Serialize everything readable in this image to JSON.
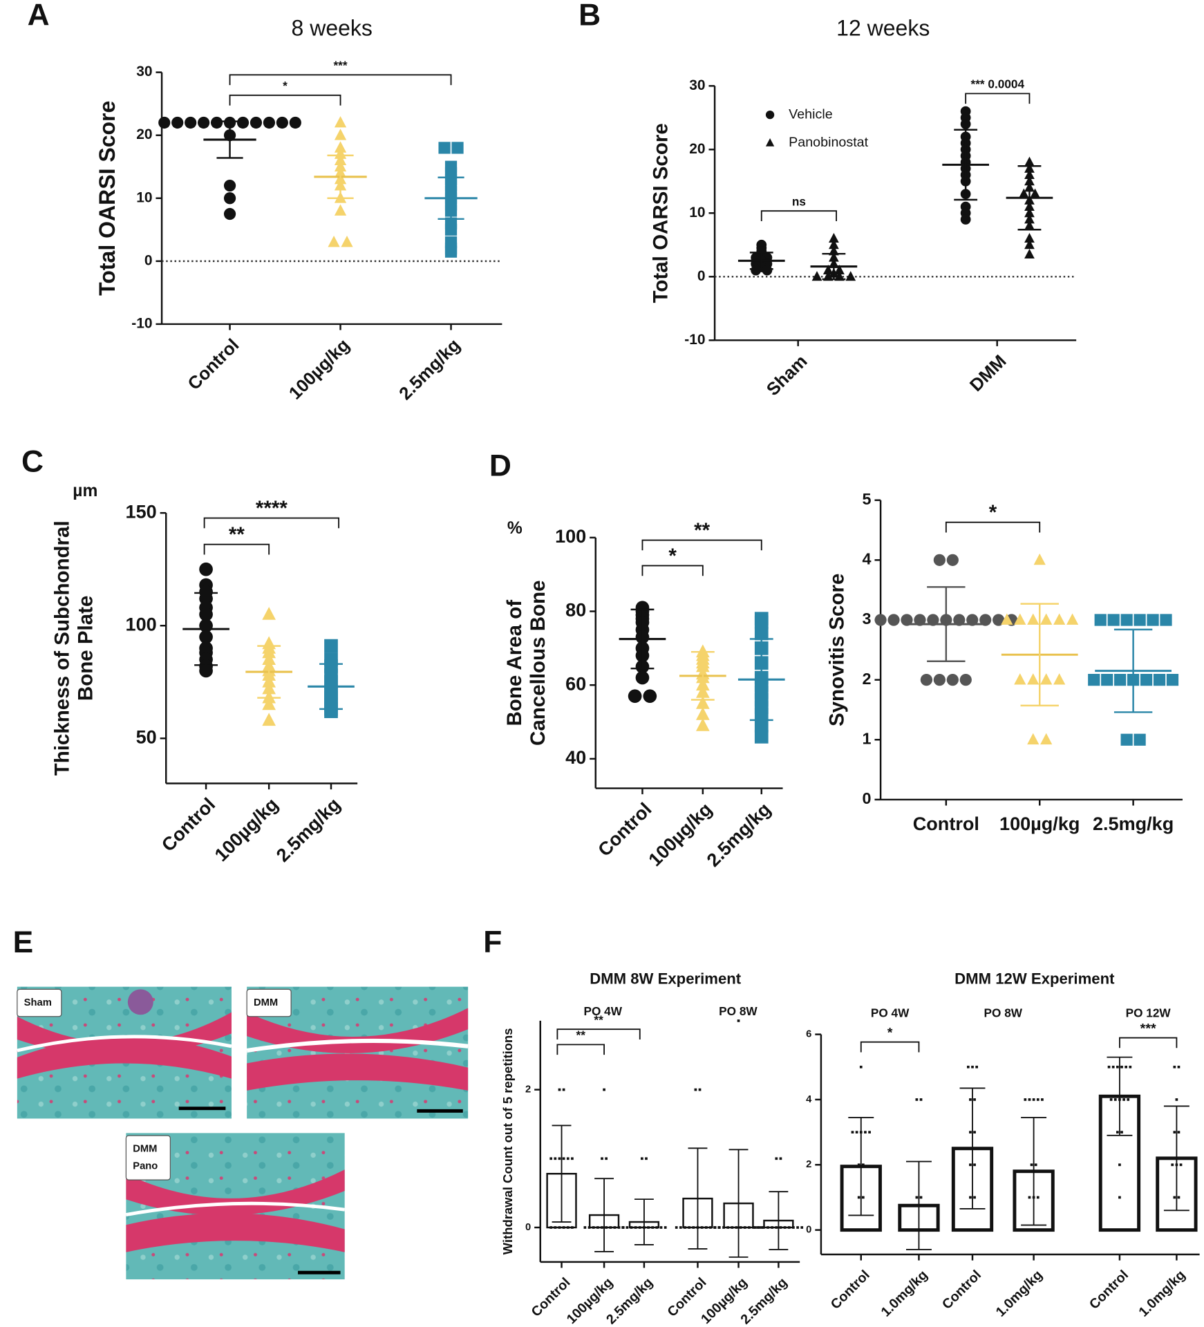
{
  "figure": {
    "panels": [
      "A",
      "B",
      "C",
      "D",
      "E",
      "F"
    ],
    "histology": [
      [
        "Sham"
      ],
      [
        "DMM"
      ],
      [
        "DMM",
        "Pano"
      ]
    ]
  },
  "chart_data": [
    {
      "type": "dotplot",
      "title": "8 weeks",
      "ylabel": [
        "Total OARSI Score"
      ],
      "ylim": [
        -10,
        30
      ],
      "yticks": [
        -10,
        0,
        10,
        20,
        30
      ],
      "zero_line": true,
      "categories": [
        "Control",
        "100µg/kg",
        "2.5mg/kg"
      ],
      "series": [
        {
          "colors": [
            "#111111",
            "#f5d36b",
            "#2a86a8"
          ],
          "marker": [
            "circle",
            "triangle",
            "square"
          ],
          "values": [
            19.3,
            13.4,
            10
          ],
          "errors": [
            2.9,
            3.4,
            3.3
          ],
          "points": [
            [
              22,
              22,
              22,
              22,
              22,
              22,
              22,
              22,
              22,
              22,
              22,
              20,
              12,
              10,
              7.5
            ],
            [
              22,
              20,
              18,
              17,
              16,
              15,
              14,
              13,
              12,
              10,
              8,
              3,
              3
            ],
            [
              18,
              18,
              15,
              14,
              13,
              12,
              11,
              10,
              9,
              8,
              6,
              5,
              3,
              2,
              1.5
            ]
          ]
        }
      ],
      "annotations": [
        "*",
        "***"
      ]
    },
    {
      "type": "dotplot",
      "title": "12 weeks",
      "ylabel": [
        "Total OARSI Score"
      ],
      "ylim": [
        -10,
        30
      ],
      "yticks": [
        -10,
        0,
        10,
        20,
        30
      ],
      "zero_line": true,
      "categories": [
        "Sham",
        "DMM"
      ],
      "series": [
        {
          "name": "Vehicle",
          "color": "#111111",
          "marker": "circle",
          "values": [
            2.5,
            17.6
          ],
          "errors": [
            1.3,
            5.5
          ],
          "points": [
            [
              5,
              4.5,
              4,
              3,
              3,
              2.5,
              2,
              2,
              1.5,
              1,
              1
            ],
            [
              26,
              25,
              24,
              22,
              21,
              20,
              19,
              18,
              17,
              16,
              15,
              13,
              11,
              10,
              9
            ]
          ]
        },
        {
          "name": "Panobinostat",
          "color": "#111111",
          "marker": "triangle",
          "values": [
            1.6,
            12.4
          ],
          "errors": [
            2,
            5
          ],
          "points": [
            [
              6,
              5,
              4,
              3,
              2,
              1,
              1,
              0.5,
              0,
              0,
              0,
              0
            ],
            [
              18,
              17,
              16,
              15,
              14,
              13,
              13,
              12,
              11,
              10,
              9,
              8,
              6,
              5,
              3.5
            ]
          ]
        }
      ],
      "annotations": [
        "ns",
        "*** 0.0004"
      ]
    },
    {
      "type": "dotplot",
      "unit": "µm",
      "ylabel": [
        "Thickness of Subchondral",
        "Bone Plate"
      ],
      "ylim": [
        30,
        150
      ],
      "yticks": [
        50,
        100,
        150
      ],
      "categories": [
        "Control",
        "100µg/kg",
        "2.5mg/kg"
      ],
      "series": [
        {
          "colors": [
            "#111111",
            "#f5d36b",
            "#2a86a8"
          ],
          "marker": [
            "circle",
            "triangle",
            "square"
          ],
          "values": [
            98.5,
            79.5,
            73
          ],
          "errors": [
            16,
            11.5,
            10
          ],
          "points": [
            [
              125,
              118,
              115,
              112,
              108,
              105,
              100,
              95,
              90,
              88,
              85,
              82,
              80
            ],
            [
              105,
              92,
              90,
              88,
              85,
              82,
              80,
              78,
              75,
              72,
              68,
              65,
              58
            ],
            [
              91,
              85,
              82,
              78,
              75,
              72,
              70,
              68,
              66,
              65,
              63,
              62
            ]
          ]
        }
      ],
      "annotations": [
        "**",
        "****"
      ]
    },
    {
      "type": "dotplot",
      "unit": "%",
      "ylabel": [
        "Bone Area of",
        "Cancellous Bone"
      ],
      "ylim": [
        32,
        100
      ],
      "yticks": [
        40,
        60,
        80,
        100
      ],
      "categories": [
        "Control",
        "100µg/kg",
        "2.5mg/kg"
      ],
      "series": [
        {
          "colors": [
            "#111111",
            "#f5d36b",
            "#2a86a8"
          ],
          "marker": [
            "circle",
            "triangle",
            "square"
          ],
          "values": [
            72.5,
            62.5,
            61.5
          ],
          "errors": [
            8,
            6.5,
            11
          ],
          "points": [
            [
              81,
              80,
              79,
              78,
              77,
              75,
              73,
              70,
              68,
              65,
              62,
              57,
              57
            ],
            [
              69,
              68,
              67,
              66,
              65,
              63,
              62,
              60,
              58,
              55,
              52,
              49
            ],
            [
              78,
              77,
              74,
              70,
              66,
              62,
              60,
              58,
              56,
              54,
              52,
              49,
              46
            ]
          ]
        }
      ],
      "annotations": [
        "*",
        "**"
      ]
    },
    {
      "type": "dotplot",
      "ylabel": [
        "Synovitis Score"
      ],
      "ylim": [
        0,
        5
      ],
      "yticks": [
        0,
        1,
        2,
        3,
        4,
        5
      ],
      "categories": [
        "Control",
        "100µg/kg",
        "2.5mg/kg"
      ],
      "series": [
        {
          "colors": [
            "#555555",
            "#f5d36b",
            "#2a86a8"
          ],
          "marker": [
            "circle",
            "triangle",
            "square"
          ],
          "values": [
            2.93,
            2.42,
            2.15
          ],
          "errors": [
            0.62,
            0.85,
            0.69
          ],
          "points": [
            [
              4,
              4,
              3,
              3,
              3,
              3,
              3,
              3,
              3,
              3,
              3,
              3,
              3,
              2,
              2,
              2,
              2
            ],
            [
              4,
              3,
              3,
              3,
              3,
              3,
              3,
              2,
              2,
              2,
              2,
              1,
              1
            ],
            [
              3,
              3,
              3,
              3,
              3,
              3,
              2,
              2,
              2,
              2,
              2,
              2,
              2,
              1,
              1
            ]
          ]
        }
      ],
      "annotations": [
        "*"
      ]
    },
    {
      "type": "bar",
      "title": "DMM 8W Experiment",
      "ylabel": [
        "Withdrawal Count out of 5 repetitions"
      ],
      "ylim": [
        -0.5,
        3
      ],
      "yticks": [
        0,
        2
      ],
      "groups": [
        {
          "label": "PO 4W",
          "categories": [
            "Control",
            "100µg/kg",
            "2.5mg/kg"
          ],
          "values": [
            0.78,
            0.18,
            0.08
          ],
          "errors": [
            0.7,
            0.53,
            0.33
          ],
          "points": [
            [
              2,
              2,
              1,
              1,
              1,
              1,
              1,
              1,
              0,
              0,
              0,
              0,
              0,
              0
            ],
            [
              2,
              1,
              1,
              0,
              0,
              0,
              0,
              0,
              0,
              0,
              0,
              0,
              0
            ],
            [
              1,
              1,
              0,
              0,
              0,
              0,
              0,
              0,
              0,
              0,
              0,
              0,
              0
            ]
          ]
        },
        {
          "label": "PO 8W",
          "categories": [
            "Control",
            "100µg/kg",
            "2.5mg/kg"
          ],
          "values": [
            0.42,
            0.35,
            0.1
          ],
          "errors": [
            0.73,
            0.78,
            0.42
          ],
          "points": [
            [
              2,
              2,
              0,
              0,
              0,
              0,
              0,
              0,
              0,
              0,
              0,
              0,
              0
            ],
            [
              3,
              0,
              0,
              0,
              0,
              0,
              0,
              0,
              0,
              0,
              0,
              0,
              0
            ],
            [
              1,
              1,
              0,
              0,
              0,
              0,
              0,
              0,
              0,
              0,
              0,
              0,
              0,
              0
            ]
          ]
        }
      ],
      "annotations": [
        "**",
        "**"
      ]
    },
    {
      "type": "bar",
      "title": "DMM 12W Experiment",
      "ylim": [
        -0.75,
        6
      ],
      "yticks": [
        0,
        2,
        4,
        6
      ],
      "groups": [
        {
          "label": "PO 4W",
          "categories": [
            "Control",
            "1.0mg/kg"
          ],
          "values": [
            1.95,
            0.75
          ],
          "errors": [
            1.5,
            1.35
          ],
          "points": [
            [
              5,
              3,
              3,
              3,
              3,
              3,
              2,
              2,
              1,
              1,
              0,
              0,
              0,
              0,
              0
            ],
            [
              4,
              4,
              1,
              1,
              0,
              0,
              0,
              0,
              0,
              0,
              0,
              0,
              0,
              0
            ]
          ]
        },
        {
          "label": "PO 8W",
          "categories": [
            "Control",
            "1.0mg/kg"
          ],
          "values": [
            2.5,
            1.8
          ],
          "errors": [
            1.85,
            1.65
          ],
          "points": [
            [
              5,
              5,
              5,
              4,
              4,
              3,
              3,
              2,
              2,
              1,
              1,
              0,
              0,
              0,
              0
            ],
            [
              4,
              4,
              4,
              4,
              4,
              2,
              2,
              1,
              1,
              1,
              0,
              0,
              0,
              0,
              0
            ]
          ]
        },
        {
          "label": "PO 12W",
          "categories": [
            "Control",
            "1.0mg/kg"
          ],
          "values": [
            4.1,
            2.2
          ],
          "errors": [
            1.2,
            1.6
          ],
          "points": [
            [
              5,
              5,
              5,
              5,
              5,
              5,
              4,
              4,
              4,
              4,
              4,
              3,
              3,
              2,
              1
            ],
            [
              5,
              5,
              4,
              3,
              3,
              2,
              2,
              2,
              1,
              1,
              0,
              0,
              0,
              0
            ]
          ]
        }
      ],
      "annotations": [
        "*",
        "***"
      ]
    }
  ]
}
